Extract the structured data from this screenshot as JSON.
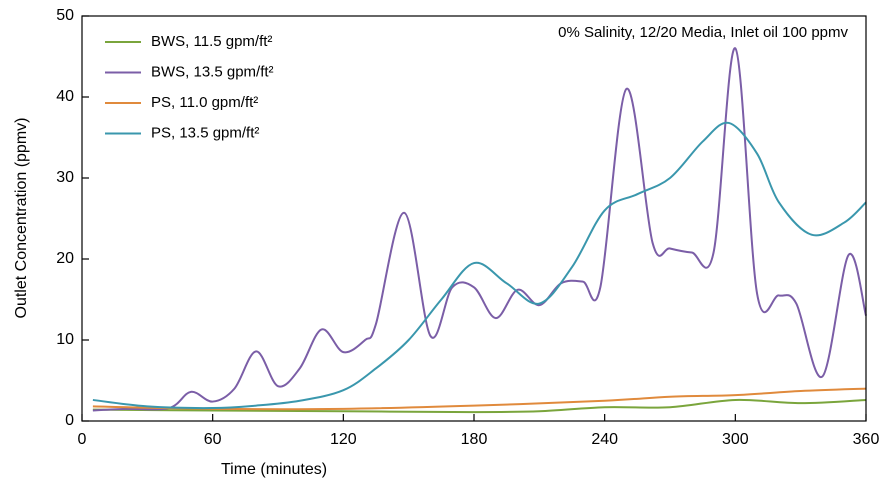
{
  "chart_data": {
    "type": "line",
    "annotation": "0% Salinity, 12/20 Media, Inlet oil 100 ppmv",
    "x_label": "Time (minutes)",
    "y_label": "Outlet Concentration (ppmv)",
    "xlim": [
      0,
      360
    ],
    "xticks": [
      0,
      60,
      120,
      180,
      240,
      300,
      360
    ],
    "ylim": [
      0,
      50
    ],
    "yticks": [
      0,
      10,
      20,
      30,
      40,
      50
    ],
    "legend": "upper left",
    "series": [
      {
        "name": "BWS, 11.5 gpm/ft²",
        "color": "#7aa53c",
        "x": [
          5,
          60,
          120,
          180,
          210,
          240,
          270,
          300,
          330,
          360
        ],
        "values": [
          1.4,
          1.3,
          1.2,
          1.1,
          1.2,
          1.7,
          1.7,
          2.6,
          2.2,
          2.6
        ]
      },
      {
        "name": "BWS, 13.5 gpm/ft²",
        "color": "#7b5ea7",
        "x": [
          5,
          20,
          40,
          50,
          60,
          70,
          80,
          90,
          100,
          110,
          120,
          130,
          135,
          148,
          160,
          170,
          180,
          190,
          200,
          210,
          220,
          230,
          238,
          250,
          262,
          270,
          280,
          290,
          300,
          310,
          320,
          328,
          340,
          352,
          360
        ],
        "values": [
          1.3,
          1.5,
          1.6,
          3.6,
          2.4,
          4,
          8.6,
          4.3,
          6.5,
          11.3,
          8.5,
          10,
          12,
          25.7,
          10.5,
          16.5,
          16.5,
          12.7,
          16.2,
          14.3,
          17,
          17.2,
          16.5,
          41,
          22,
          21.3,
          20.8,
          20.8,
          46,
          15.7,
          15.5,
          14.5,
          5.5,
          20.5,
          13
        ]
      },
      {
        "name": "PS, 11.0 gpm/ft²",
        "color": "#e08a3c",
        "x": [
          5,
          60,
          120,
          180,
          240,
          270,
          300,
          330,
          360
        ],
        "values": [
          1.8,
          1.5,
          1.5,
          1.9,
          2.5,
          3,
          3.2,
          3.7,
          4
        ]
      },
      {
        "name": "PS, 13.5 gpm/ft²",
        "color": "#3a97ad",
        "x": [
          5,
          30,
          60,
          80,
          100,
          120,
          135,
          150,
          165,
          180,
          195,
          210,
          225,
          240,
          255,
          270,
          285,
          297,
          310,
          320,
          335,
          350,
          360
        ],
        "values": [
          2.6,
          1.8,
          1.6,
          1.9,
          2.5,
          3.8,
          6.5,
          10,
          15,
          19.5,
          17,
          14.5,
          19,
          26,
          28,
          30,
          34.5,
          36.8,
          33,
          27,
          23,
          24.5,
          27
        ]
      }
    ]
  }
}
